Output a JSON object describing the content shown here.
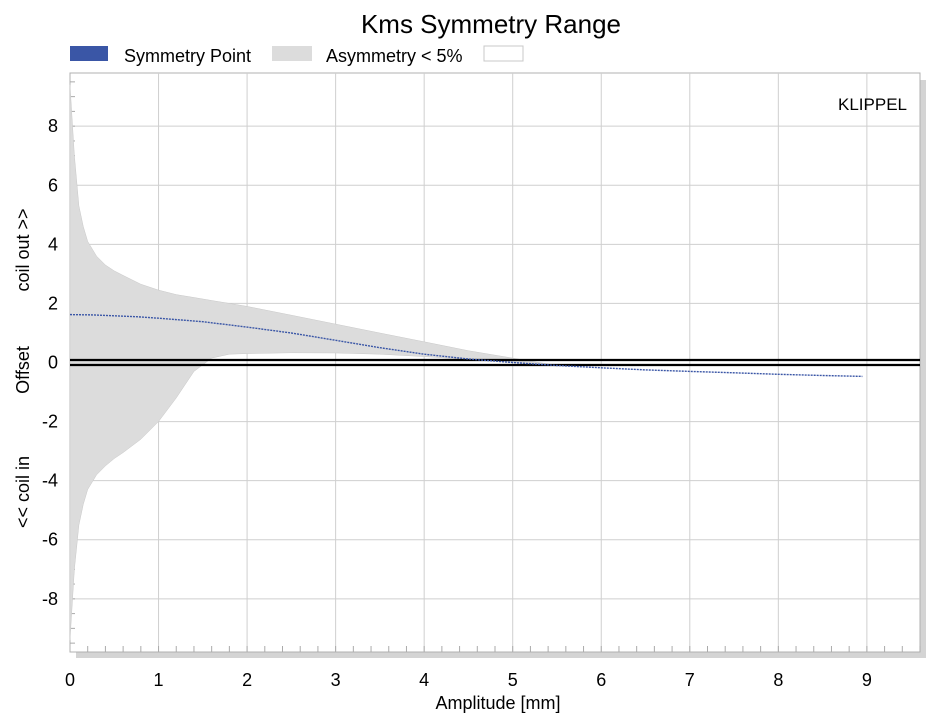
{
  "chart_data": {
    "type": "area",
    "title": "Kms Symmetry Range",
    "xlabel": "Amplitude [mm]",
    "ylabel_top": "coil out >>",
    "ylabel_mid": "Offset",
    "ylabel_bottom": "<< coil in",
    "watermark": "KLIPPEL",
    "xlim": [
      0,
      9.6
    ],
    "ylim": [
      -9.8,
      9.8
    ],
    "x_ticks": [
      0,
      1,
      2,
      3,
      4,
      5,
      6,
      7,
      8,
      9
    ],
    "y_ticks": [
      -8,
      -6,
      -4,
      -2,
      0,
      2,
      4,
      6,
      8
    ],
    "grid": true,
    "legend_position": "top-left",
    "legend": [
      {
        "label": "Symmetry Point",
        "color": "#3a56a6"
      },
      {
        "label": "Asymmetry < 5%",
        "color": "#dcdcdc"
      },
      {
        "label": "",
        "color": "#ffffff"
      }
    ],
    "series": [
      {
        "name": "Symmetry Point",
        "x": [
          0,
          0.25,
          0.5,
          0.75,
          1,
          1.5,
          2,
          2.5,
          3,
          3.5,
          4,
          4.5,
          5,
          5.5,
          6,
          6.5,
          7,
          7.5,
          8,
          8.5,
          8.95
        ],
        "y": [
          1.62,
          1.61,
          1.58,
          1.55,
          1.5,
          1.38,
          1.2,
          1.0,
          0.75,
          0.5,
          0.28,
          0.12,
          0.0,
          -0.1,
          -0.18,
          -0.25,
          -0.3,
          -0.35,
          -0.4,
          -0.44,
          -0.47
        ]
      },
      {
        "name": "Asymmetry < 5%",
        "x": [
          0.0,
          0.05,
          0.1,
          0.15,
          0.2,
          0.3,
          0.4,
          0.5,
          0.6,
          0.8,
          1.0,
          1.2,
          1.4,
          1.6,
          1.8,
          2.0,
          2.5,
          3.0,
          3.5,
          4.0,
          4.5,
          5.0,
          5.5
        ],
        "upper": [
          9.4,
          7.0,
          5.3,
          4.6,
          4.1,
          3.6,
          3.3,
          3.1,
          2.95,
          2.65,
          2.45,
          2.3,
          2.2,
          2.1,
          2.0,
          1.9,
          1.6,
          1.3,
          1.0,
          0.7,
          0.4,
          0.15,
          -0.1
        ],
        "lower": [
          -9.4,
          -7.0,
          -5.5,
          -4.8,
          -4.3,
          -3.8,
          -3.5,
          -3.25,
          -3.05,
          -2.6,
          -2.0,
          -1.2,
          -0.3,
          0.15,
          0.28,
          0.3,
          0.33,
          0.32,
          0.28,
          0.2,
          0.1,
          0.0,
          -0.12
        ]
      }
    ]
  }
}
